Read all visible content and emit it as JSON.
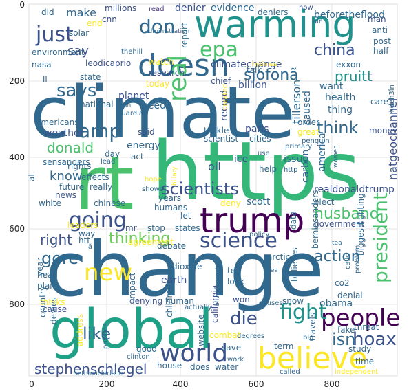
{
  "figure": {
    "x_ticks": [
      "0",
      "200",
      "400",
      "600",
      "800"
    ],
    "y_ticks": [
      "0",
      "200",
      "400",
      "600",
      "800"
    ]
  },
  "palette": [
    "#440154",
    "#46327e",
    "#365c8d",
    "#277f8e",
    "#1fa187",
    "#4ac16d",
    "#a0da39",
    "#fde725"
  ],
  "words": [
    {
      "text": "climate",
      "color": "#31688e"
    },
    {
      "text": "change",
      "color": "#31688e"
    },
    {
      "text": "https",
      "color": "#35b779"
    },
    {
      "text": "rt",
      "color": "#4ac16d"
    },
    {
      "text": "warming",
      "color": "#21918c"
    },
    {
      "text": "global",
      "color": "#1fa187"
    },
    {
      "text": "trump",
      "color": "#440154"
    },
    {
      "text": "believe",
      "color": "#fde725"
    },
    {
      "text": "doesn",
      "color": "#31688e"
    },
    {
      "text": "people",
      "color": "#440154"
    },
    {
      "text": "world",
      "color": "#3b528b"
    },
    {
      "text": "science",
      "color": "#3b528b"
    },
    {
      "text": "scientists",
      "color": "#3b528b"
    },
    {
      "text": "going",
      "color": "#3b528b"
    },
    {
      "text": "amp",
      "color": "#31688e"
    },
    {
      "text": "new",
      "color": "#fde725"
    },
    {
      "text": "fight",
      "color": "#21918c"
    },
    {
      "text": "just",
      "color": "#3b528b"
    },
    {
      "text": "says",
      "color": "#31688e"
    },
    {
      "text": "epa",
      "color": "#4ac16d"
    },
    {
      "text": "don",
      "color": "#31688e"
    },
    {
      "text": "china",
      "color": "#3b528b"
    },
    {
      "text": "real",
      "color": "#4ac16d"
    },
    {
      "text": "president",
      "color": "#4ac16d"
    },
    {
      "text": "hoax",
      "color": "#3b528b"
    },
    {
      "text": "action",
      "color": "#31688e"
    },
    {
      "text": "husband",
      "color": "#4ac16d"
    },
    {
      "text": "think",
      "color": "#31688e"
    },
    {
      "text": "thinking",
      "color": "#6ece58"
    },
    {
      "text": "donald",
      "color": "#4ac16d"
    },
    {
      "text": "die",
      "color": "#3b528b"
    },
    {
      "text": "like",
      "color": "#31688e"
    },
    {
      "text": "isn",
      "color": "#31688e"
    },
    {
      "text": "stephenschlegel",
      "color": "#3b528b"
    },
    {
      "text": "sjofonã",
      "color": "#31688e"
    },
    {
      "text": "pruitt",
      "color": "#21918c"
    },
    {
      "text": "gore",
      "color": "#31688e"
    },
    {
      "text": "right",
      "color": "#3b528b"
    },
    {
      "text": "make",
      "color": "#31688e"
    },
    {
      "text": "say",
      "color": "#3b528b"
    },
    {
      "text": "know",
      "color": "#31688e"
    },
    {
      "text": "millions",
      "color": "#3b528b"
    },
    {
      "text": "read",
      "color": "#46327e"
    },
    {
      "text": "denier",
      "color": "#3b528b"
    },
    {
      "text": "evidence",
      "color": "#31688e"
    },
    {
      "text": "deniers",
      "color": "#31688e"
    },
    {
      "text": "now",
      "color": "#3b528b"
    },
    {
      "text": "beforetheflood",
      "color": "#31688e"
    },
    {
      "text": "man",
      "color": "#3b528b"
    },
    {
      "text": "anti",
      "color": "#31688e"
    },
    {
      "text": "post",
      "color": "#31688e"
    },
    {
      "text": "half",
      "color": "#31688e"
    },
    {
      "text": "exxon",
      "color": "#31688e"
    },
    {
      "text": "did",
      "color": "#31688e"
    },
    {
      "text": "end",
      "color": "#fde725"
    },
    {
      "text": "solar",
      "color": "#31688e"
    },
    {
      "text": "environment",
      "color": "#31688e"
    },
    {
      "text": "nasa",
      "color": "#31688e"
    },
    {
      "text": "ll",
      "color": "#31688e"
    },
    {
      "text": "leodicaprio",
      "color": "#3b528b"
    },
    {
      "text": "cnn",
      "color": "#3b528b"
    },
    {
      "text": "thehill",
      "color": "#31688e"
    },
    {
      "text": "administration",
      "color": "#31688e"
    },
    {
      "text": "report",
      "color": "#31688e"
    },
    {
      "text": "climatechange",
      "color": "#3b528b"
    },
    {
      "text": "talk",
      "color": "#31688e"
    },
    {
      "text": "chief",
      "color": "#3b528b"
    },
    {
      "text": "watch",
      "color": "#fde725"
    },
    {
      "text": "research",
      "color": "#3b528b"
    },
    {
      "text": "today",
      "color": "#fde725"
    },
    {
      "text": "state",
      "color": "#31688e"
    },
    {
      "text": "national",
      "color": "#31688e"
    },
    {
      "text": "billion",
      "color": "#3b528b"
    },
    {
      "text": "want",
      "color": "#31688e"
    },
    {
      "text": "health",
      "color": "#31688e"
    },
    {
      "text": "thing",
      "color": "#31688e"
    },
    {
      "text": "care",
      "color": "#31688e"
    },
    {
      "text": "planet",
      "color": "#3b528b"
    },
    {
      "text": "need",
      "color": "#31688e"
    },
    {
      "text": "join",
      "color": "#31688e"
    },
    {
      "text": "guardian",
      "color": "#31688e"
    },
    {
      "text": "tillerson",
      "color": "#31688e"
    },
    {
      "text": "record",
      "color": "#3b528b"
    },
    {
      "text": "caused",
      "color": "#31688e"
    },
    {
      "text": "natgeochannel",
      "color": "#3b528b"
    },
    {
      "text": "americans",
      "color": "#31688e"
    },
    {
      "text": "weather",
      "color": "#3b528b"
    },
    {
      "text": "said",
      "color": "#3b528b"
    },
    {
      "text": "tackle",
      "color": "#31688e"
    },
    {
      "text": "paris",
      "color": "#3b528b"
    },
    {
      "text": "scientist",
      "color": "#31688e"
    },
    {
      "text": "cities",
      "color": "#31688e"
    },
    {
      "text": "order",
      "color": "#31688e"
    },
    {
      "text": "great",
      "color": "#fde725"
    },
    {
      "text": "money",
      "color": "#3b528b"
    },
    {
      "text": "penguin",
      "color": "#31688e"
    },
    {
      "text": "energy",
      "color": "#31688e"
    },
    {
      "text": "act",
      "color": "#31688e"
    },
    {
      "text": "day",
      "color": "#31688e"
    },
    {
      "text": "sensanders",
      "color": "#31688e"
    },
    {
      "text": "rights",
      "color": "#31688e"
    },
    {
      "text": "oil",
      "color": "#3b528b"
    },
    {
      "text": "ice",
      "color": "#3b528b"
    },
    {
      "text": "help",
      "color": "#31688e"
    },
    {
      "text": "issue",
      "color": "#31688e"
    },
    {
      "text": "america",
      "color": "#31688e"
    },
    {
      "text": "carbon",
      "color": "#31688e"
    },
    {
      "text": "realdonaldtrump",
      "color": "#3b528b"
    },
    {
      "text": "effects",
      "color": "#31688e"
    },
    {
      "text": "future",
      "color": "#31688e"
    },
    {
      "text": "really",
      "color": "#31688e"
    },
    {
      "text": "news",
      "color": "#3b528b"
    },
    {
      "text": "white",
      "color": "#31688e"
    },
    {
      "text": "chinese",
      "color": "#31688e"
    },
    {
      "text": "years",
      "color": "#31688e"
    },
    {
      "text": "deny",
      "color": "#fde725"
    },
    {
      "text": "scott",
      "color": "#31688e"
    },
    {
      "text": "elect",
      "color": "#31688e"
    },
    {
      "text": "government",
      "color": "#3b528b"
    },
    {
      "text": "humans",
      "color": "#31688e"
    },
    {
      "text": "let",
      "color": "#31688e"
    },
    {
      "text": "mr",
      "color": "#3b528b"
    },
    {
      "text": "stop",
      "color": "#31688e"
    },
    {
      "text": "states",
      "color": "#31688e"
    },
    {
      "text": "leaders",
      "color": "#fde725"
    },
    {
      "text": "way",
      "color": "#31688e"
    },
    {
      "text": "agreement",
      "color": "#fde725"
    },
    {
      "text": "debate",
      "color": "#31688e"
    },
    {
      "text": "arctic",
      "color": "#31688e"
    },
    {
      "text": "data",
      "color": "#31688e"
    },
    {
      "text": "threat",
      "color": "#31688e"
    },
    {
      "text": "year",
      "color": "#31688e"
    },
    {
      "text": "dioxide",
      "color": "#31688e"
    },
    {
      "text": "earth",
      "color": "#3b528b"
    },
    {
      "text": "head",
      "color": "#31688e"
    },
    {
      "text": "plan",
      "color": "#31688e"
    },
    {
      "text": "impact",
      "color": "#31688e"
    },
    {
      "text": "believes",
      "color": "#31688e"
    },
    {
      "text": "look",
      "color": "#31688e"
    },
    {
      "text": "tell",
      "color": "#31688e"
    },
    {
      "text": "co2",
      "color": "#31688e"
    },
    {
      "text": "denial",
      "color": "#31688e"
    },
    {
      "text": "berniesanders",
      "color": "#31688e"
    },
    {
      "text": "biggestfighting",
      "color": "#31688e"
    },
    {
      "text": "thinks",
      "color": "#fde725"
    },
    {
      "text": "cause",
      "color": "#3b528b"
    },
    {
      "text": "country",
      "color": "#31688e"
    },
    {
      "text": "denies",
      "color": "#31688e"
    },
    {
      "text": "denying",
      "color": "#3b528b"
    },
    {
      "text": "human",
      "color": "#31688e"
    },
    {
      "text": "children",
      "color": "#31688e"
    },
    {
      "text": "won",
      "color": "#3b528b"
    },
    {
      "text": "snow",
      "color": "#31688e"
    },
    {
      "text": "obama",
      "color": "#31688e"
    },
    {
      "text": "travels",
      "color": "#31688e"
    },
    {
      "text": "fake",
      "color": "#31688e"
    },
    {
      "text": "study",
      "color": "#31688e"
    },
    {
      "text": "time",
      "color": "#31688e"
    },
    {
      "text": "big",
      "color": "#31688e"
    },
    {
      "text": "term",
      "color": "#31688e"
    },
    {
      "text": "save",
      "color": "#31688e"
    },
    {
      "text": "work",
      "color": "#31688e"
    },
    {
      "text": "called",
      "color": "#31688e"
    },
    {
      "text": "independent",
      "color": "#fde725"
    },
    {
      "text": "water",
      "color": "#31688e"
    },
    {
      "text": "does",
      "color": "#31688e"
    },
    {
      "text": "house",
      "color": "#31688e"
    },
    {
      "text": "combat",
      "color": "#fde725"
    },
    {
      "text": "degrees",
      "color": "#31688e"
    },
    {
      "text": "website",
      "color": "#31688e"
    },
    {
      "text": "california",
      "color": "#3b528b"
    },
    {
      "text": "good",
      "color": "#31688e"
    },
    {
      "text": "address",
      "color": "#fde725"
    },
    {
      "text": "policies",
      "color": "#31688e"
    },
    {
      "text": "clinton",
      "color": "#31688e"
    },
    {
      "text": "sethmacfarlane",
      "color": "#31688e"
    },
    {
      "text": "actually",
      "color": "#31688e"
    },
    {
      "text": "causes",
      "color": "#31688e"
    },
    {
      "text": "lkdeh3în",
      "color": "#31688e"
    },
    {
      "text": "primary",
      "color": "#31688e"
    },
    {
      "text": "use",
      "color": "#31688e"
    },
    {
      "text": "http",
      "color": "#31688e"
    },
    {
      "text": "htt",
      "color": "#31688e"
    },
    {
      "text": "ã",
      "color": "#31688e"
    },
    {
      "text": "hope",
      "color": "#fde725"
    },
    {
      "text": "shows",
      "color": "#31688e"
    },
    {
      "text": "al",
      "color": "#31688e"
    },
    {
      "text": "lead",
      "color": "#31688e"
    },
    {
      "text": "policy",
      "color": "#31688e"
    },
    {
      "text": "calls",
      "color": "#31688e"
    },
    {
      "text": "problem",
      "color": "#31688e"
    },
    {
      "text": "environmental",
      "color": "#31688e"
    },
    {
      "text": "women",
      "color": "#31688e"
    },
    {
      "text": "air",
      "color": "#31688e"
    },
    {
      "text": "hillary",
      "color": "#fde725"
    },
    {
      "text": "created",
      "color": "#fde725"
    },
    {
      "text": "hytimes",
      "color": "#fde725"
    },
    {
      "text": "tea",
      "color": "#31688e"
    },
    {
      "text": "sea",
      "color": "#31688e"
    }
  ]
}
